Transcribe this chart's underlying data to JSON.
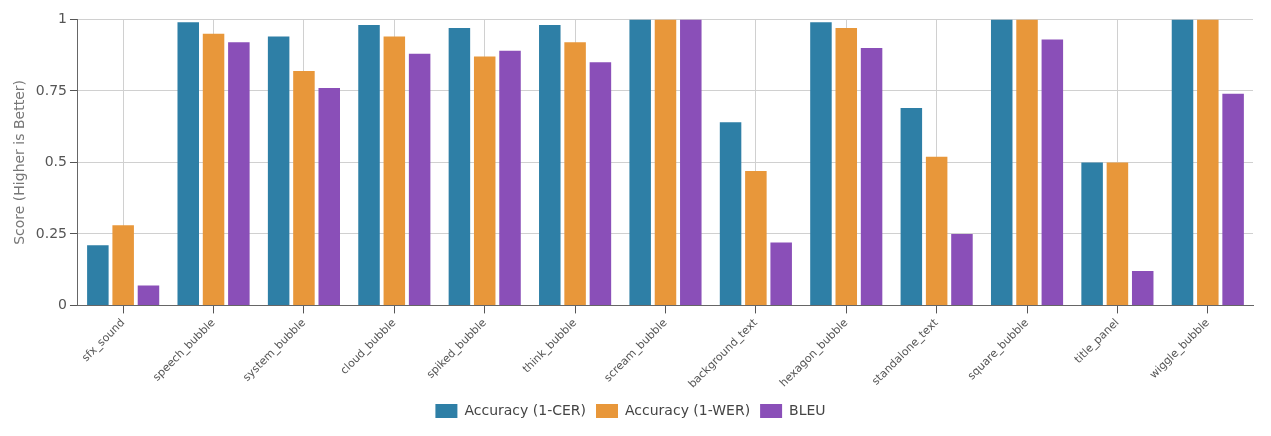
{
  "chart_data": {
    "type": "bar",
    "ylabel": "Score (Higher is Better)",
    "categories": [
      "sfx_sound",
      "speech_bubble",
      "system_bubble",
      "cloud_bubble",
      "spiked_bubble",
      "think_bubble",
      "scream_bubble",
      "background_text",
      "hexagon_bubble",
      "standalone_text",
      "square_bubble",
      "title_panel",
      "wiggle_bubble"
    ],
    "series": [
      {
        "name": "Accuracy (1-CER)",
        "color": "#2e7fa6",
        "values": [
          0.21,
          0.99,
          0.94,
          0.98,
          0.97,
          0.98,
          1,
          0.64,
          0.99,
          0.69,
          1,
          0.5,
          1
        ]
      },
      {
        "name": "Accuracy (1-WER)",
        "color": "#e8973a",
        "values": [
          0.28,
          0.95,
          0.82,
          0.94,
          0.87,
          0.92,
          1,
          0.47,
          0.97,
          0.52,
          1,
          0.5,
          1
        ]
      },
      {
        "name": "BLEU",
        "color": "#8a4fb8",
        "values": [
          0.07,
          0.92,
          0.76,
          0.88,
          0.89,
          0.85,
          1,
          0.22,
          0.9,
          0.25,
          0.93,
          0.12,
          0.74
        ]
      }
    ],
    "ylim": [
      0,
      1
    ],
    "yticks": [
      0,
      0.25,
      0.5,
      0.75,
      1
    ],
    "grid": true,
    "legend": "bottom"
  }
}
